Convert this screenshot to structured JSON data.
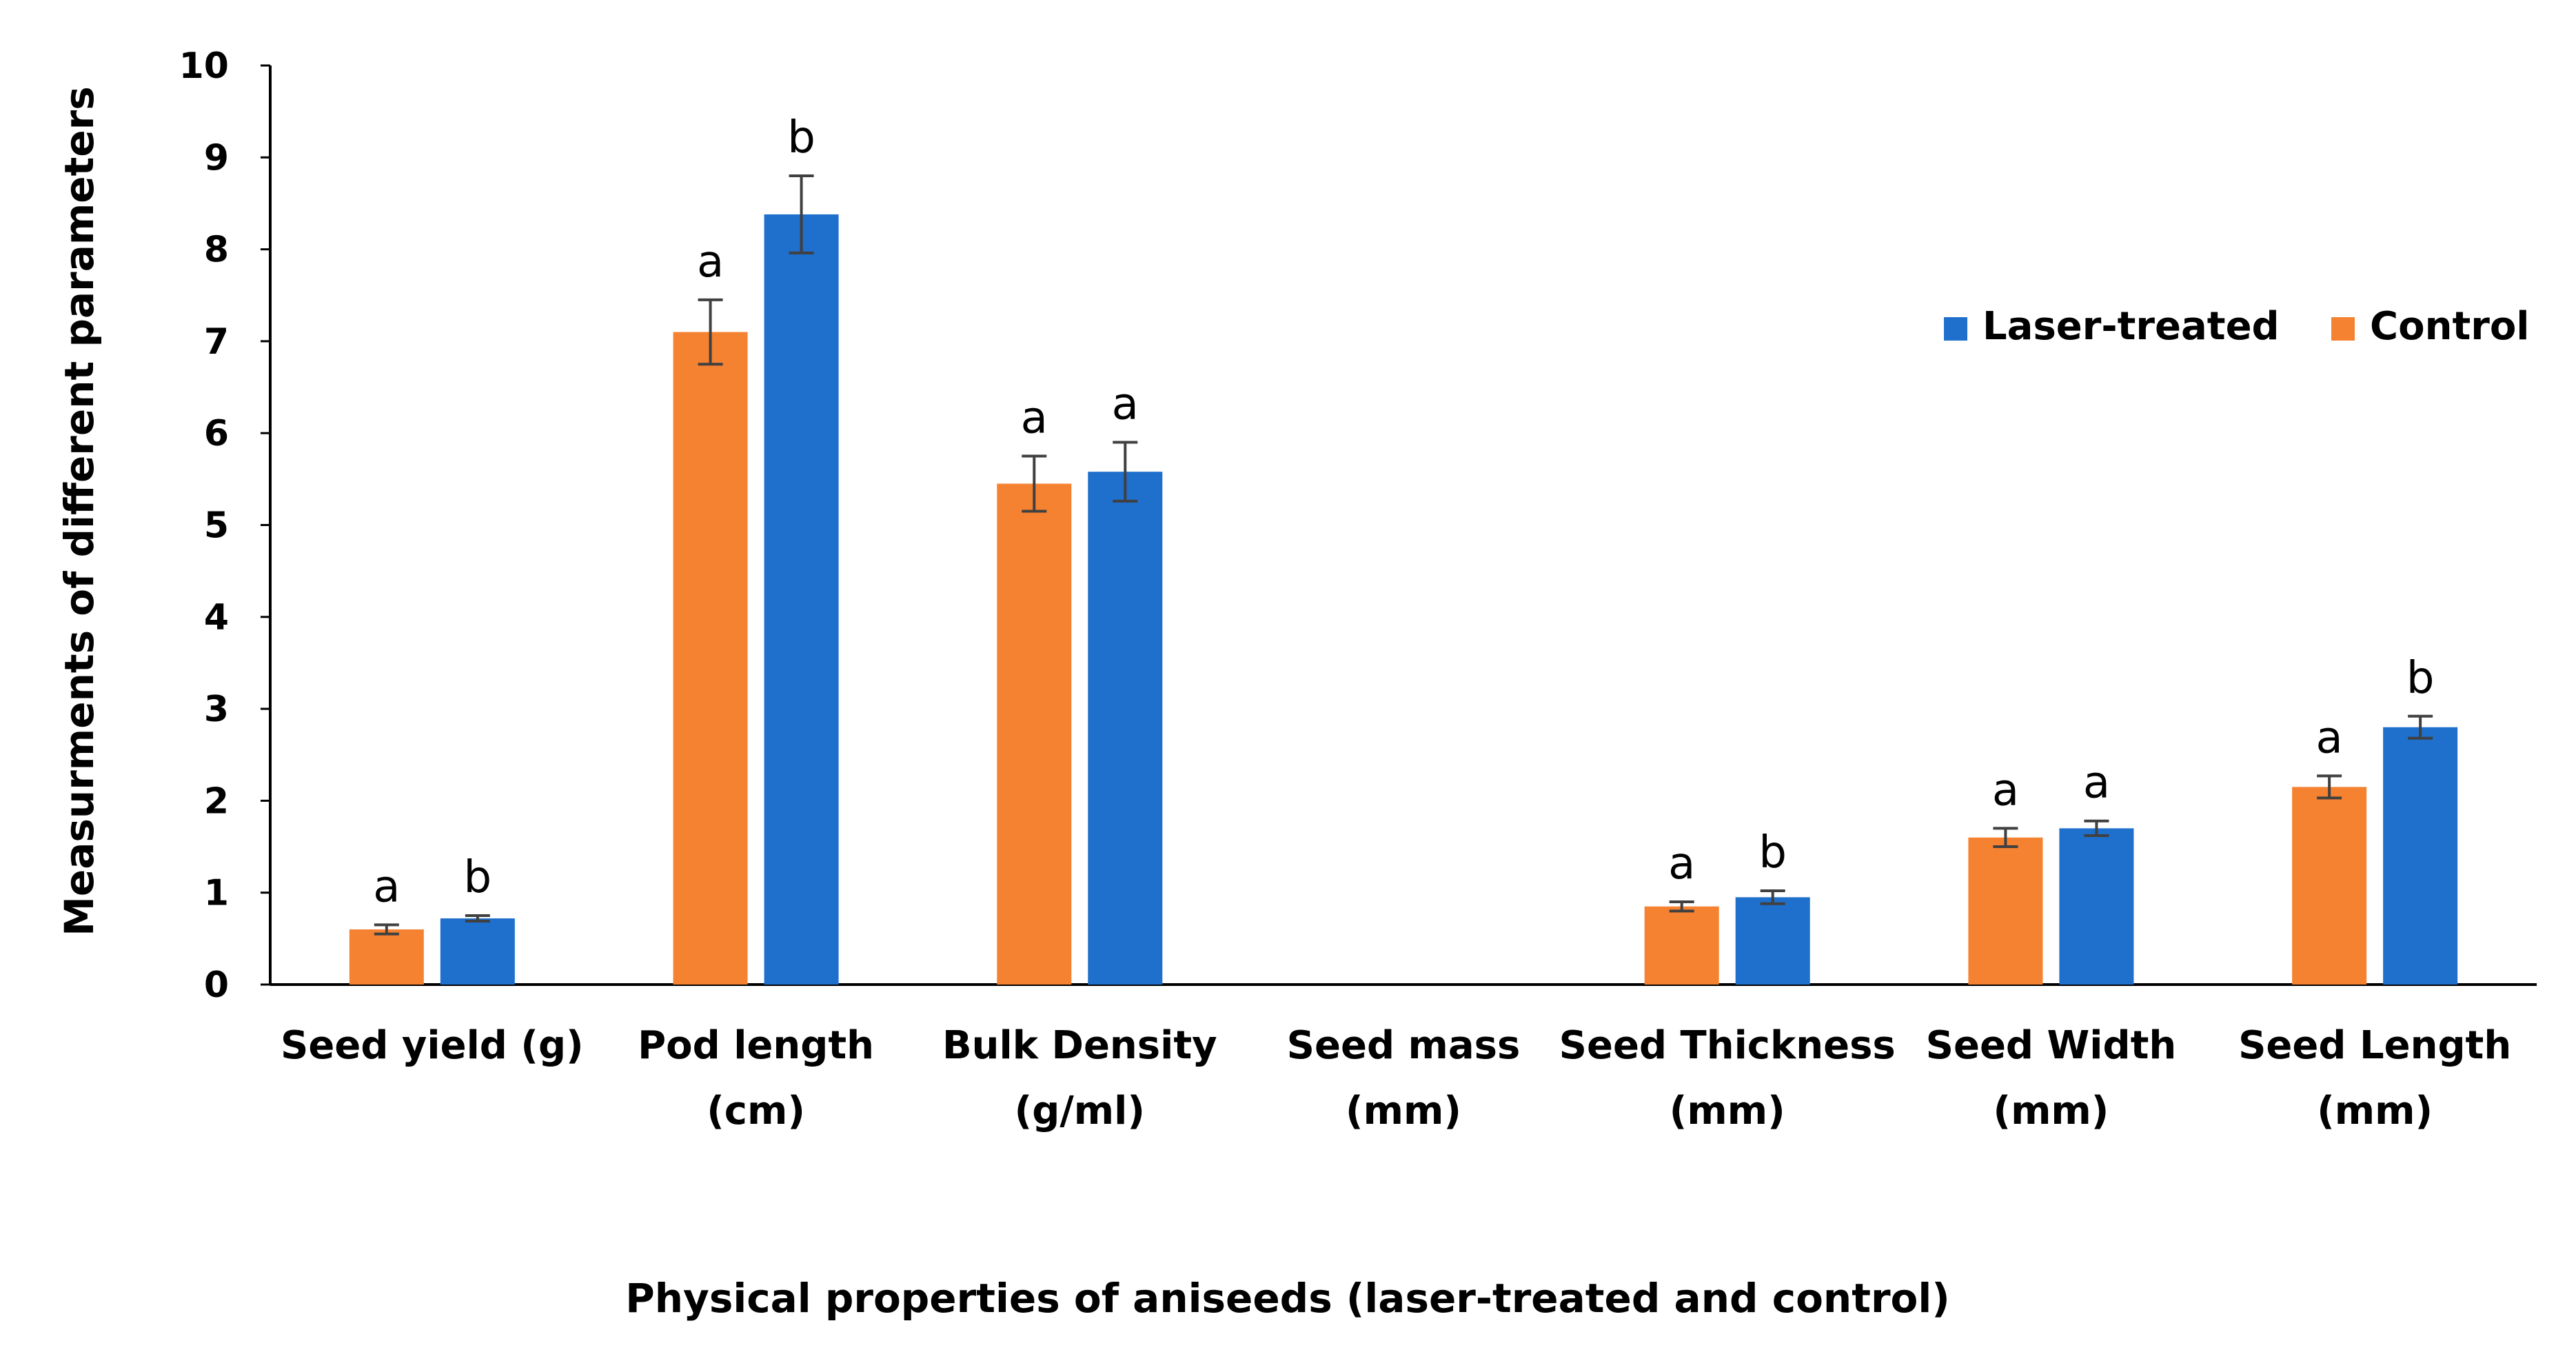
{
  "chart_data": {
    "type": "bar",
    "title": "",
    "xlabel": "Physical  properties of aniseeds (laser-treated and control)",
    "ylabel": "Measurments of different parameters",
    "ylim": [
      0,
      10
    ],
    "yticks": [
      "0",
      "1",
      "2",
      "3",
      "4",
      "5",
      "6",
      "7",
      "8",
      "9",
      "10"
    ],
    "legend_position": "right",
    "categories": [
      [
        "Seed yield (g)"
      ],
      [
        "Pod length",
        "(cm)"
      ],
      [
        "Bulk Density",
        "(g/ml)"
      ],
      [
        "Seed mass",
        "(mm)"
      ],
      [
        "Seed Thickness",
        "(mm)"
      ],
      [
        "Seed Width",
        "(mm)"
      ],
      [
        "Seed Length",
        "(mm)"
      ]
    ],
    "series": [
      {
        "name": "Control",
        "color": "#f58231",
        "values": [
          0.6,
          7.1,
          5.45,
          null,
          0.85,
          1.6,
          2.15
        ],
        "errors": [
          0.05,
          0.35,
          0.3,
          null,
          0.05,
          0.1,
          0.12
        ],
        "labels": [
          "a",
          "a",
          "a",
          "",
          "a",
          "a",
          "a"
        ]
      },
      {
        "name": "Laser-treated",
        "color": "#1f6fcc",
        "values": [
          0.72,
          8.38,
          5.58,
          null,
          0.95,
          1.7,
          2.8
        ],
        "errors": [
          0.03,
          0.42,
          0.32,
          null,
          0.07,
          0.08,
          0.12
        ],
        "labels": [
          "b",
          "b",
          "a",
          "",
          "b",
          "a",
          "b"
        ]
      }
    ],
    "legend_order": [
      "Laser-treated",
      "Control"
    ]
  }
}
